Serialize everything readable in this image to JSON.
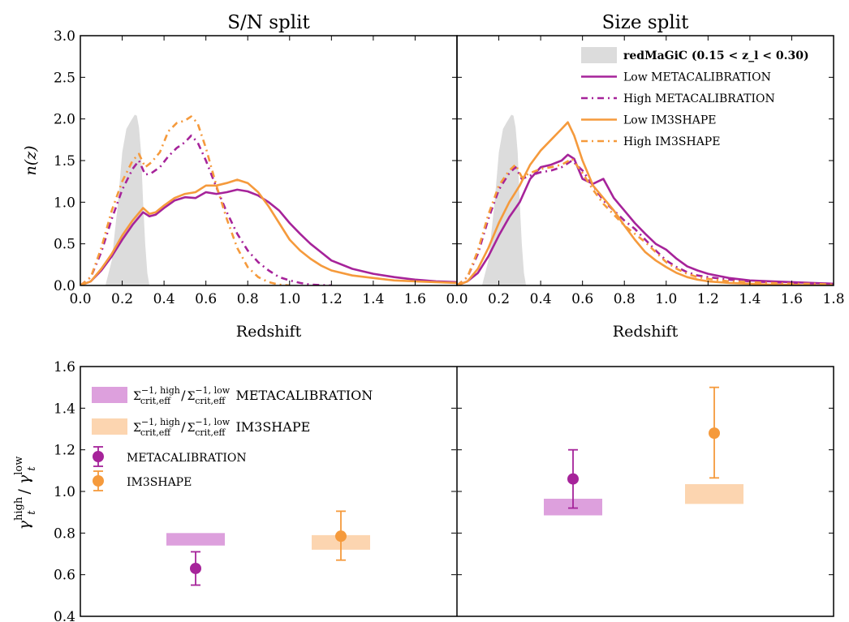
{
  "colors": {
    "metacal": "#a6239a",
    "im3shape": "#f59a3c",
    "metacal_band": "#dda0dd",
    "im3shape_band": "#fcd5b0",
    "redmagic": "#dcdcdc"
  },
  "chart_data": [
    {
      "type": "line",
      "title": "S/N split",
      "xlabel": "Redshift",
      "ylabel": "n(z)",
      "xlim": [
        0.0,
        1.8
      ],
      "ylim": [
        0.0,
        3.0
      ],
      "xticks": [
        "0.0",
        "0.2",
        "0.4",
        "0.6",
        "0.8",
        "1.0",
        "1.2",
        "1.4",
        "1.6"
      ],
      "yticks": [
        "0.0",
        "0.5",
        "1.0",
        "1.5",
        "2.0",
        "2.5",
        "3.0"
      ],
      "legend": {
        "redmagic": "redMaGiC (0.15 < z_l < 0.30)",
        "low_metacal": "Low METACALIBRATION",
        "high_metacal": "High METACALIBRATION",
        "low_im3": "Low IM3SHAPE",
        "high_im3": "High IM3SHAPE"
      },
      "redmagic": {
        "x": [
          0.12,
          0.15,
          0.18,
          0.2,
          0.22,
          0.24,
          0.26,
          0.27,
          0.28,
          0.29,
          0.3,
          0.31,
          0.32,
          0.33
        ],
        "y": [
          0,
          0.3,
          1.0,
          1.6,
          1.88,
          1.97,
          2.05,
          2.04,
          1.9,
          1.6,
          1.0,
          0.5,
          0.15,
          0
        ]
      },
      "series": [
        {
          "name": "Low METACALIBRATION",
          "shape": "Metacalibration",
          "split": "low",
          "x": [
            0,
            0.05,
            0.1,
            0.15,
            0.2,
            0.25,
            0.3,
            0.33,
            0.36,
            0.4,
            0.45,
            0.5,
            0.55,
            0.6,
            0.65,
            0.7,
            0.75,
            0.8,
            0.85,
            0.9,
            0.95,
            1.0,
            1.05,
            1.1,
            1.15,
            1.2,
            1.3,
            1.4,
            1.5,
            1.6,
            1.7,
            1.8
          ],
          "y": [
            0,
            0.05,
            0.18,
            0.35,
            0.55,
            0.73,
            0.88,
            0.83,
            0.85,
            0.93,
            1.02,
            1.06,
            1.05,
            1.12,
            1.1,
            1.12,
            1.15,
            1.13,
            1.08,
            1.0,
            0.9,
            0.75,
            0.62,
            0.5,
            0.4,
            0.3,
            0.2,
            0.14,
            0.1,
            0.07,
            0.05,
            0.04
          ]
        },
        {
          "name": "High METACALIBRATION",
          "shape": "Metacalibration",
          "split": "high",
          "x": [
            0,
            0.05,
            0.1,
            0.15,
            0.2,
            0.25,
            0.28,
            0.31,
            0.34,
            0.38,
            0.42,
            0.46,
            0.5,
            0.53,
            0.56,
            0.6,
            0.65,
            0.7,
            0.75,
            0.8,
            0.85,
            0.9,
            0.95,
            1.0,
            1.05,
            1.1,
            1.2
          ],
          "y": [
            0,
            0.1,
            0.4,
            0.8,
            1.15,
            1.4,
            1.5,
            1.33,
            1.35,
            1.42,
            1.55,
            1.65,
            1.72,
            1.8,
            1.72,
            1.5,
            1.18,
            0.88,
            0.62,
            0.42,
            0.28,
            0.18,
            0.1,
            0.06,
            0.03,
            0.01,
            0.0
          ]
        },
        {
          "name": "Low IM3SHAPE",
          "shape": "im3shape",
          "split": "low",
          "x": [
            0,
            0.05,
            0.1,
            0.15,
            0.2,
            0.25,
            0.3,
            0.33,
            0.36,
            0.4,
            0.45,
            0.5,
            0.55,
            0.6,
            0.65,
            0.7,
            0.75,
            0.8,
            0.85,
            0.9,
            0.95,
            1.0,
            1.05,
            1.1,
            1.15,
            1.2,
            1.3,
            1.4,
            1.5,
            1.6,
            1.7,
            1.8
          ],
          "y": [
            0,
            0.05,
            0.2,
            0.38,
            0.6,
            0.78,
            0.93,
            0.86,
            0.88,
            0.96,
            1.05,
            1.1,
            1.12,
            1.2,
            1.2,
            1.23,
            1.27,
            1.23,
            1.12,
            0.95,
            0.75,
            0.55,
            0.42,
            0.32,
            0.24,
            0.18,
            0.12,
            0.09,
            0.06,
            0.05,
            0.04,
            0.03
          ]
        },
        {
          "name": "High IM3SHAPE",
          "shape": "im3shape",
          "split": "high",
          "x": [
            0,
            0.05,
            0.1,
            0.15,
            0.2,
            0.25,
            0.28,
            0.31,
            0.34,
            0.38,
            0.42,
            0.46,
            0.5,
            0.53,
            0.56,
            0.6,
            0.65,
            0.7,
            0.75,
            0.8,
            0.85,
            0.9,
            0.95,
            1.0
          ],
          "y": [
            0,
            0.1,
            0.45,
            0.9,
            1.25,
            1.5,
            1.58,
            1.42,
            1.48,
            1.6,
            1.85,
            1.95,
            1.98,
            2.03,
            1.95,
            1.65,
            1.2,
            0.8,
            0.45,
            0.22,
            0.1,
            0.04,
            0.01,
            0.0
          ]
        }
      ]
    },
    {
      "type": "line",
      "title": "Size split",
      "xlabel": "Redshift",
      "xlim": [
        0.0,
        1.8
      ],
      "ylim": [
        0.0,
        3.0
      ],
      "xticks": [
        "0.0",
        "0.2",
        "0.4",
        "0.6",
        "0.8",
        "1.0",
        "1.2",
        "1.4",
        "1.6",
        "1.8"
      ],
      "redmagic": {
        "x": [
          0.12,
          0.15,
          0.18,
          0.2,
          0.22,
          0.24,
          0.26,
          0.27,
          0.28,
          0.29,
          0.3,
          0.31,
          0.32,
          0.33
        ],
        "y": [
          0,
          0.3,
          1.0,
          1.6,
          1.88,
          1.97,
          2.05,
          2.04,
          1.9,
          1.6,
          1.0,
          0.5,
          0.15,
          0
        ]
      },
      "series": [
        {
          "name": "Low METACALIBRATION",
          "shape": "Metacalibration",
          "split": "low",
          "x": [
            0,
            0.05,
            0.1,
            0.15,
            0.2,
            0.25,
            0.3,
            0.35,
            0.4,
            0.45,
            0.5,
            0.53,
            0.56,
            0.6,
            0.65,
            0.7,
            0.75,
            0.8,
            0.85,
            0.9,
            0.95,
            1.0,
            1.05,
            1.1,
            1.15,
            1.2,
            1.3,
            1.4,
            1.5,
            1.6,
            1.7,
            1.8
          ],
          "y": [
            0,
            0.05,
            0.15,
            0.35,
            0.6,
            0.82,
            1.0,
            1.28,
            1.42,
            1.45,
            1.5,
            1.57,
            1.52,
            1.28,
            1.22,
            1.28,
            1.05,
            0.9,
            0.75,
            0.62,
            0.5,
            0.43,
            0.32,
            0.23,
            0.18,
            0.14,
            0.09,
            0.06,
            0.05,
            0.04,
            0.03,
            0.02
          ]
        },
        {
          "name": "High METACALIBRATION",
          "shape": "Metacalibration",
          "split": "high",
          "x": [
            0,
            0.05,
            0.1,
            0.15,
            0.2,
            0.25,
            0.28,
            0.31,
            0.35,
            0.4,
            0.45,
            0.5,
            0.55,
            0.6,
            0.65,
            0.7,
            0.75,
            0.8,
            0.85,
            0.9,
            0.95,
            1.0,
            1.05,
            1.1,
            1.15,
            1.2,
            1.3,
            1.4,
            1.5,
            1.6,
            1.7,
            1.8
          ],
          "y": [
            0,
            0.1,
            0.38,
            0.8,
            1.15,
            1.35,
            1.42,
            1.28,
            1.32,
            1.36,
            1.38,
            1.42,
            1.5,
            1.38,
            1.2,
            1.02,
            0.9,
            0.78,
            0.68,
            0.55,
            0.42,
            0.3,
            0.22,
            0.16,
            0.12,
            0.1,
            0.07,
            0.05,
            0.04,
            0.03,
            0.02,
            0.02
          ]
        },
        {
          "name": "Low IM3SHAPE",
          "shape": "im3shape",
          "split": "low",
          "x": [
            0,
            0.05,
            0.1,
            0.15,
            0.2,
            0.25,
            0.3,
            0.35,
            0.4,
            0.45,
            0.5,
            0.53,
            0.56,
            0.6,
            0.65,
            0.7,
            0.75,
            0.8,
            0.85,
            0.9,
            0.95,
            1.0,
            1.05,
            1.1,
            1.15,
            1.2,
            1.3,
            1.4,
            1.5,
            1.6,
            1.7,
            1.8
          ],
          "y": [
            0,
            0.05,
            0.2,
            0.45,
            0.75,
            1.0,
            1.2,
            1.45,
            1.62,
            1.75,
            1.88,
            1.96,
            1.8,
            1.5,
            1.2,
            1.05,
            0.9,
            0.72,
            0.55,
            0.4,
            0.3,
            0.22,
            0.15,
            0.1,
            0.07,
            0.05,
            0.03,
            0.02,
            0.01,
            0.01,
            0.0,
            0.0
          ]
        },
        {
          "name": "High IM3SHAPE",
          "shape": "im3shape",
          "split": "high",
          "x": [
            0,
            0.05,
            0.1,
            0.15,
            0.2,
            0.25,
            0.28,
            0.31,
            0.35,
            0.4,
            0.45,
            0.5,
            0.55,
            0.6,
            0.65,
            0.7,
            0.75,
            0.8,
            0.85,
            0.9,
            0.95,
            1.0,
            1.05,
            1.1,
            1.15,
            1.2,
            1.3,
            1.4,
            1.5,
            1.6,
            1.7,
            1.8
          ],
          "y": [
            0,
            0.1,
            0.42,
            0.85,
            1.2,
            1.38,
            1.45,
            1.3,
            1.35,
            1.4,
            1.42,
            1.45,
            1.52,
            1.35,
            1.15,
            0.98,
            0.85,
            0.72,
            0.62,
            0.52,
            0.4,
            0.28,
            0.2,
            0.14,
            0.1,
            0.08,
            0.05,
            0.04,
            0.03,
            0.02,
            0.02,
            0.01
          ]
        }
      ]
    },
    {
      "type": "scatter",
      "ylabel": "γ_t^high / γ_t^low",
      "ylim": [
        0.4,
        1.6
      ],
      "yticks": [
        "0.4",
        "0.6",
        "0.8",
        "1.0",
        "1.2",
        "1.4",
        "1.6"
      ],
      "legend": {
        "band_metacal": "Σ_crit,eff^{-1, high} / Σ_crit,eff^{-1, low} METACALIBRATION",
        "band_im3": "Σ_crit,eff^{-1, high} / Σ_crit,eff^{-1, low} IM3SHAPE",
        "point_metacal": "METACALIBRATION",
        "point_im3": "IM3SHAPE"
      },
      "bands": [
        {
          "split": "S/N",
          "shape": "Metacalibration",
          "low": 0.74,
          "high": 0.8
        },
        {
          "split": "S/N",
          "shape": "im3shape",
          "low": 0.72,
          "high": 0.79
        },
        {
          "split": "Size",
          "shape": "Metacalibration",
          "low": 0.885,
          "high": 0.965
        },
        {
          "split": "Size",
          "shape": "im3shape",
          "low": 0.94,
          "high": 1.035
        }
      ],
      "points": [
        {
          "split": "S/N",
          "shape": "Metacalibration",
          "value": 0.63,
          "err_low": 0.55,
          "err_high": 0.71
        },
        {
          "split": "S/N",
          "shape": "im3shape",
          "value": 0.785,
          "err_low": 0.67,
          "err_high": 0.905
        },
        {
          "split": "Size",
          "shape": "Metacalibration",
          "value": 1.06,
          "err_low": 0.92,
          "err_high": 1.2
        },
        {
          "split": "Size",
          "shape": "im3shape",
          "value": 1.28,
          "err_low": 1.065,
          "err_high": 1.5
        }
      ]
    }
  ]
}
